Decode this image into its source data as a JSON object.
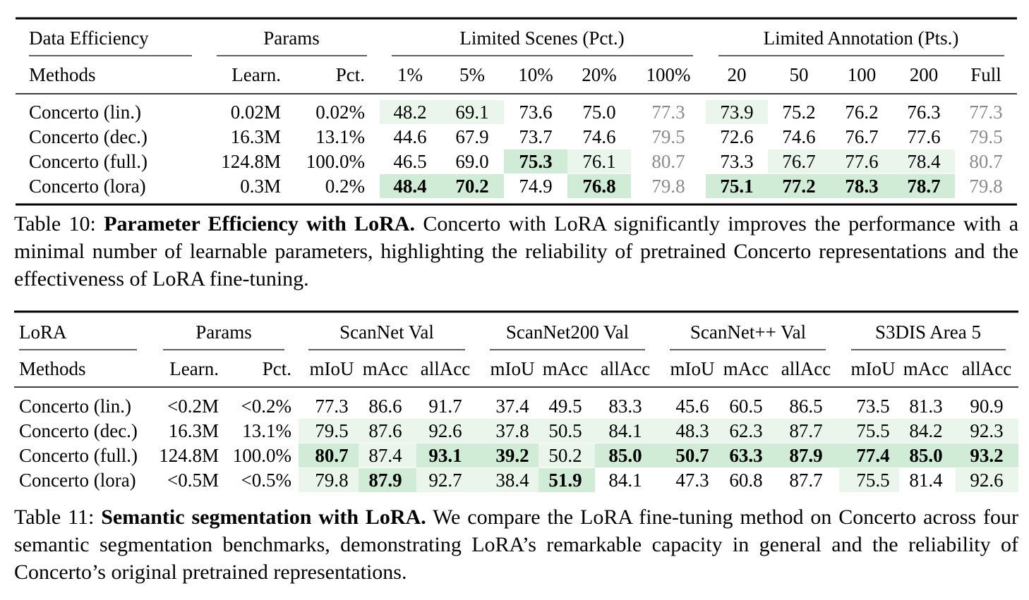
{
  "table10": {
    "group_headers": [
      "Data Efficiency",
      "Params",
      "Limited Scenes (Pct.)",
      "Limited Annotation (Pts.)"
    ],
    "col_headers": [
      "Methods",
      "Learn.",
      "Pct.",
      "1%",
      "5%",
      "10%",
      "20%",
      "100%",
      "20",
      "50",
      "100",
      "200",
      "Full"
    ],
    "rows": [
      {
        "method": "Concerto (lin.)",
        "cells": [
          "0.02M",
          "0.02%",
          "48.2",
          "69.1",
          "73.6",
          "75.0",
          "77.3",
          "73.9",
          "75.2",
          "76.2",
          "76.3",
          "77.3"
        ],
        "shade": [
          0,
          0,
          1,
          1,
          0,
          0,
          0,
          1,
          0,
          0,
          0,
          0
        ],
        "bold": [
          0,
          0,
          0,
          0,
          0,
          0,
          0,
          0,
          0,
          0,
          0,
          0
        ]
      },
      {
        "method": "Concerto (dec.)",
        "cells": [
          "16.3M",
          "13.1%",
          "44.6",
          "67.9",
          "73.7",
          "74.6",
          "79.5",
          "72.6",
          "74.6",
          "76.7",
          "77.6",
          "79.5"
        ],
        "shade": [
          0,
          0,
          0,
          0,
          0,
          0,
          0,
          0,
          0,
          0,
          0,
          0
        ],
        "bold": [
          0,
          0,
          0,
          0,
          0,
          0,
          0,
          0,
          0,
          0,
          0,
          0
        ]
      },
      {
        "method": "Concerto (full.)",
        "cells": [
          "124.8M",
          "100.0%",
          "46.5",
          "69.0",
          "75.3",
          "76.1",
          "80.7",
          "73.3",
          "76.7",
          "77.6",
          "78.4",
          "80.7"
        ],
        "shade": [
          0,
          0,
          0,
          0,
          3,
          1,
          0,
          0,
          1,
          1,
          1,
          0
        ],
        "bold": [
          0,
          0,
          0,
          0,
          1,
          0,
          0,
          0,
          0,
          0,
          0,
          0
        ]
      },
      {
        "method": "Concerto (lora)",
        "cells": [
          "0.3M",
          "0.2%",
          "48.4",
          "70.2",
          "74.9",
          "76.8",
          "79.8",
          "75.1",
          "77.2",
          "78.3",
          "78.7",
          "79.8"
        ],
        "shade": [
          0,
          0,
          3,
          3,
          0,
          3,
          0,
          3,
          3,
          3,
          3,
          0
        ],
        "bold": [
          0,
          0,
          1,
          1,
          0,
          1,
          0,
          1,
          1,
          1,
          1,
          0
        ]
      }
    ],
    "caption_label": "Table 10:",
    "caption_title": "Parameter Efficiency with LoRA.",
    "caption_text": "Concerto with LoRA significantly improves the performance with a minimal number of learnable parameters, highlighting the reliability of pretrained Concerto representations and the effectiveness of LoRA fine-tuning."
  },
  "table11": {
    "group_headers": [
      "LoRA",
      "Params",
      "ScanNet Val",
      "ScanNet200 Val",
      "ScanNet++ Val",
      "S3DIS Area 5"
    ],
    "col_headers": [
      "Methods",
      "Learn.",
      "Pct.",
      "mIoU",
      "mAcc",
      "allAcc",
      "mIoU",
      "mAcc",
      "allAcc",
      "mIoU",
      "mAcc",
      "allAcc",
      "mIoU",
      "mAcc",
      "allAcc"
    ],
    "rows": [
      {
        "method": "Concerto (lin.)",
        "cells": [
          "<0.2M",
          "<0.2%",
          "77.3",
          "86.6",
          "91.7",
          "37.4",
          "49.5",
          "83.3",
          "45.6",
          "60.5",
          "86.5",
          "73.5",
          "81.3",
          "90.9"
        ],
        "shade": [
          0,
          0,
          0,
          0,
          0,
          0,
          0,
          0,
          0,
          0,
          0,
          0,
          0,
          0
        ],
        "bold": [
          0,
          0,
          0,
          0,
          0,
          0,
          0,
          0,
          0,
          0,
          0,
          0,
          0,
          0
        ]
      },
      {
        "method": "Concerto (dec.)",
        "cells": [
          "16.3M",
          "13.1%",
          "79.5",
          "87.6",
          "92.6",
          "37.8",
          "50.5",
          "84.1",
          "48.3",
          "62.3",
          "87.7",
          "75.5",
          "84.2",
          "92.3"
        ],
        "shade": [
          0,
          0,
          1,
          1,
          1,
          1,
          1,
          1,
          1,
          1,
          1,
          1,
          1,
          1
        ],
        "bold": [
          0,
          0,
          0,
          0,
          0,
          0,
          0,
          0,
          0,
          0,
          0,
          0,
          0,
          0
        ]
      },
      {
        "method": "Concerto (full.)",
        "cells": [
          "124.8M",
          "100.0%",
          "80.7",
          "87.4",
          "93.1",
          "39.2",
          "50.2",
          "85.0",
          "50.7",
          "63.3",
          "87.9",
          "77.4",
          "85.0",
          "93.2"
        ],
        "shade": [
          0,
          0,
          3,
          1,
          3,
          3,
          1,
          3,
          3,
          3,
          3,
          3,
          3,
          3
        ],
        "bold": [
          0,
          0,
          1,
          0,
          1,
          1,
          0,
          1,
          1,
          1,
          1,
          1,
          1,
          1
        ]
      },
      {
        "method": "Concerto (lora)",
        "cells": [
          "<0.5M",
          "<0.5%",
          "79.8",
          "87.9",
          "92.7",
          "38.4",
          "51.9",
          "84.1",
          "47.3",
          "60.8",
          "87.7",
          "75.5",
          "81.4",
          "92.6"
        ],
        "shade": [
          0,
          0,
          1,
          3,
          1,
          1,
          3,
          0,
          0,
          0,
          0,
          1,
          0,
          1
        ],
        "bold": [
          0,
          0,
          0,
          1,
          0,
          0,
          1,
          0,
          0,
          0,
          0,
          0,
          0,
          0
        ]
      }
    ],
    "caption_label": "Table 11:",
    "caption_title": "Semantic segmentation with LoRA.",
    "caption_text": "We compare the LoRA fine-tuning method on Concerto across four semantic segmentation benchmarks, demonstrating LoRA’s remarkable capacity in general and the reliability of Concerto’s original pretrained representations."
  },
  "colors": {
    "shade_light": "#eaf6ec",
    "shade_strong": "#d0ecd6",
    "grey_text": "#8a8a8a"
  }
}
